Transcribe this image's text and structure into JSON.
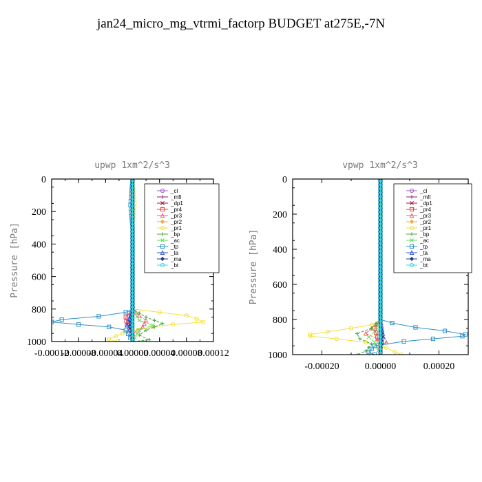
{
  "page": {
    "title": "jan24_micro_mg_vtrmi_factorp  BUDGET at275E,-7N"
  },
  "legend_entries": [
    "_cl",
    "_mfl",
    "_dp1",
    "_pr4",
    "_pr3",
    "_pr2",
    "_pr1",
    "_bp",
    "_ac",
    "_tp",
    "_ta",
    "_ma",
    "_bt"
  ],
  "series_colors": {
    "_cl": "#a05cc8",
    "_mfl": "#7a1f7a",
    "_dp1": "#9b1c3c",
    "_pr4": "#e8403c",
    "_pr3": "#f06060",
    "_pr2": "#f5a83a",
    "_pr1": "#f2e23a",
    "_bp": "#3ca83c",
    "_ac": "#66dd55",
    "_tp": "#2e8fc8",
    "_ta": "#3050d8",
    "_ma": "#2a3a8a",
    "_bt": "#33dddd"
  },
  "chart_data": [
    {
      "type": "line",
      "title": "upwp   1xm^2/s^3",
      "ylabel": "Pressure [hPa]",
      "xlabel": "",
      "ylim": [
        1000,
        0
      ],
      "xlim": [
        -0.00012,
        0.00012
      ],
      "y_ticks": [
        0,
        200,
        400,
        600,
        800,
        1000
      ],
      "x_tick_labels": [
        "-0.00012",
        "-0.00008",
        "-0.00004",
        "0.00000",
        "0.00004",
        "0.00008",
        "0.00012"
      ],
      "x_tick_values": [
        -0.00012,
        -8e-05,
        -4e-05,
        0.0,
        4e-05,
        8e-05,
        0.00012
      ],
      "legend_position": "top-right",
      "series": [
        {
          "name": "_cl",
          "points": [
            [
              0,
              0
            ],
            [
              0,
              300
            ],
            [
              0,
              600
            ],
            [
              0,
              800
            ],
            [
              0,
              1000
            ]
          ]
        },
        {
          "name": "_mfl",
          "points": [
            [
              0,
              0
            ],
            [
              0,
              300
            ],
            [
              0,
              600
            ],
            [
              0,
              800
            ],
            [
              0,
              1000
            ]
          ]
        },
        {
          "name": "_dp1",
          "points": [
            [
              0,
              0
            ],
            [
              0,
              400
            ],
            [
              0,
              800
            ],
            [
              0,
              1000
            ]
          ]
        },
        {
          "name": "_pr4",
          "points": [
            [
              0,
              0
            ],
            [
              0,
              800
            ],
            [
              -1e-05,
              850
            ],
            [
              -8e-06,
              900
            ],
            [
              0,
              950
            ],
            [
              0,
              1000
            ]
          ]
        },
        {
          "name": "_pr3",
          "points": [
            [
              0,
              0
            ],
            [
              0,
              800
            ],
            [
              1e-05,
              840
            ],
            [
              2e-05,
              870
            ],
            [
              1.5e-05,
              910
            ],
            [
              0,
              950
            ],
            [
              0,
              1000
            ]
          ]
        },
        {
          "name": "_pr2",
          "points": [
            [
              0,
              0
            ],
            [
              0,
              800
            ],
            [
              -3e-06,
              850
            ],
            [
              -2e-06,
              900
            ],
            [
              0,
              1000
            ]
          ]
        },
        {
          "name": "_pr1",
          "points": [
            [
              0,
              0
            ],
            [
              3e-06,
              150
            ],
            [
              0,
              300
            ],
            [
              0,
              800
            ],
            [
              4e-05,
              820
            ],
            [
              8e-05,
              840
            ],
            [
              9.5e-05,
              860
            ],
            [
              0.000105,
              880
            ],
            [
              6e-05,
              895
            ],
            [
              3e-05,
              910
            ],
            [
              -1.5e-05,
              950
            ],
            [
              -3.5e-05,
              985
            ],
            [
              -2.2e-05,
              1000
            ]
          ]
        },
        {
          "name": "_bp",
          "points": [
            [
              0,
              0
            ],
            [
              0,
              800
            ],
            [
              2e-05,
              850
            ],
            [
              4.5e-05,
              890
            ],
            [
              2e-05,
              930
            ],
            [
              1e-05,
              960
            ],
            [
              2.5e-05,
              990
            ],
            [
              0,
              1000
            ]
          ]
        },
        {
          "name": "_ac",
          "points": [
            [
              0,
              0
            ],
            [
              0,
              800
            ],
            [
              1e-05,
              870
            ],
            [
              3e-05,
              900
            ],
            [
              1e-05,
              930
            ],
            [
              0,
              1000
            ]
          ]
        },
        {
          "name": "_tp",
          "points": [
            [
              0,
              0
            ],
            [
              -3e-06,
              160
            ],
            [
              0,
              300
            ],
            [
              0,
              800
            ],
            [
              -1e-05,
              820
            ],
            [
              -5e-05,
              845
            ],
            [
              -0.000105,
              865
            ],
            [
              -0.00012,
              880
            ],
            [
              -8e-05,
              895
            ],
            [
              -3.5e-05,
              910
            ],
            [
              -1e-05,
              930
            ],
            [
              0,
              1000
            ]
          ]
        },
        {
          "name": "_ta",
          "points": [
            [
              0,
              0
            ],
            [
              0,
              800
            ],
            [
              -8e-06,
              900
            ],
            [
              0,
              950
            ],
            [
              0,
              1000
            ]
          ]
        },
        {
          "name": "_ma",
          "points": [
            [
              0,
              0
            ],
            [
              0,
              800
            ],
            [
              -3e-06,
              900
            ],
            [
              0,
              1000
            ]
          ]
        },
        {
          "name": "_bt",
          "points": [
            [
              0,
              0
            ],
            [
              0,
              800
            ],
            [
              0,
              1000
            ]
          ]
        }
      ]
    },
    {
      "type": "line",
      "title": "vpwp   1xm^2/s^3",
      "ylabel": "Pressure [hPa]",
      "xlabel": "",
      "ylim": [
        1000,
        0
      ],
      "xlim": [
        -0.0003,
        0.0003
      ],
      "y_ticks": [
        0,
        200,
        400,
        600,
        800,
        1000
      ],
      "x_tick_labels": [
        "-0.00020",
        "0.00000",
        "0.00020"
      ],
      "x_tick_values": [
        -0.0002,
        0.0,
        0.0002
      ],
      "legend_position": "top-right",
      "series": [
        {
          "name": "_cl",
          "points": [
            [
              0,
              0
            ],
            [
              0,
              300
            ],
            [
              0,
              600
            ],
            [
              0,
              800
            ],
            [
              0,
              1000
            ]
          ]
        },
        {
          "name": "_mfl",
          "points": [
            [
              0,
              0
            ],
            [
              0,
              300
            ],
            [
              0,
              600
            ],
            [
              0,
              800
            ],
            [
              0,
              1000
            ]
          ]
        },
        {
          "name": "_dp1",
          "points": [
            [
              0,
              0
            ],
            [
              0,
              400
            ],
            [
              0,
              800
            ],
            [
              0,
              1000
            ]
          ]
        },
        {
          "name": "_pr4",
          "points": [
            [
              0,
              0
            ],
            [
              0,
              800
            ],
            [
              -2e-05,
              850
            ],
            [
              -1e-05,
              900
            ],
            [
              0,
              950
            ],
            [
              0,
              1000
            ]
          ]
        },
        {
          "name": "_pr3",
          "points": [
            [
              0,
              0
            ],
            [
              0,
              800
            ],
            [
              -3e-05,
              850
            ],
            [
              -5e-05,
              880
            ],
            [
              -1e-05,
              910
            ],
            [
              2e-05,
              930
            ],
            [
              0,
              960
            ],
            [
              0,
              1000
            ]
          ]
        },
        {
          "name": "_pr2",
          "points": [
            [
              0,
              0
            ],
            [
              0,
              800
            ],
            [
              5e-06,
              900
            ],
            [
              0,
              1000
            ]
          ]
        },
        {
          "name": "_pr1",
          "points": [
            [
              0,
              0
            ],
            [
              2e-06,
              200
            ],
            [
              0,
              300
            ],
            [
              0,
              800
            ],
            [
              -3e-05,
              830
            ],
            [
              -0.0001,
              850
            ],
            [
              -0.00018,
              870
            ],
            [
              -0.00024,
              885
            ],
            [
              -0.00024,
              895
            ],
            [
              -0.00015,
              910
            ],
            [
              -5e-05,
              930
            ],
            [
              2e-05,
              960
            ],
            [
              5e-05,
              985
            ],
            [
              7e-05,
              1000
            ]
          ]
        },
        {
          "name": "_bp",
          "points": [
            [
              0,
              0
            ],
            [
              0,
              800
            ],
            [
              -3e-05,
              850
            ],
            [
              -8e-05,
              880
            ],
            [
              -7e-05,
              910
            ],
            [
              -3e-05,
              940
            ],
            [
              -5e-05,
              980
            ],
            [
              -8e-05,
              1000
            ]
          ]
        },
        {
          "name": "_ac",
          "points": [
            [
              0,
              0
            ],
            [
              0,
              800
            ],
            [
              -2e-05,
              870
            ],
            [
              -4e-05,
              900
            ],
            [
              -2e-05,
              930
            ],
            [
              0,
              1000
            ]
          ]
        },
        {
          "name": "_tp",
          "points": [
            [
              0,
              0
            ],
            [
              0,
              800
            ],
            [
              4e-05,
              820
            ],
            [
              0.00012,
              845
            ],
            [
              0.00022,
              865
            ],
            [
              0.00029,
              885
            ],
            [
              0.00028,
              895
            ],
            [
              0.00018,
              910
            ],
            [
              8e-05,
              925
            ],
            [
              -2e-05,
              950
            ],
            [
              -4e-05,
              985
            ],
            [
              -2e-05,
              1000
            ]
          ]
        },
        {
          "name": "_ta",
          "points": [
            [
              0,
              0
            ],
            [
              0,
              800
            ],
            [
              1e-05,
              900
            ],
            [
              0,
              950
            ],
            [
              0,
              1000
            ]
          ]
        },
        {
          "name": "_ma",
          "points": [
            [
              0,
              0
            ],
            [
              0,
              800
            ],
            [
              5e-06,
              900
            ],
            [
              0,
              1000
            ]
          ]
        },
        {
          "name": "_bt",
          "points": [
            [
              0,
              0
            ],
            [
              0,
              800
            ],
            [
              0,
              1000
            ]
          ]
        }
      ]
    }
  ]
}
